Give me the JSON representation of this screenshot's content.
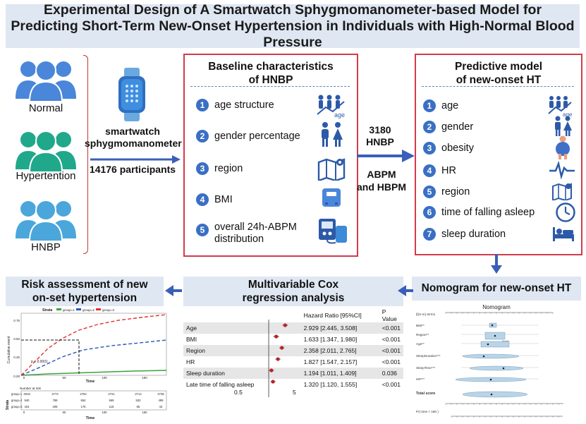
{
  "title": {
    "line1": "Experimental Design of A Smartwatch Sphygmomanometer-based Model for",
    "line2": "Predicting Short-Term New-Onset Hypertension in Individuals with High-Normal Blood Pressure"
  },
  "groups": [
    {
      "label": "Normal",
      "color": "#4a86d9"
    },
    {
      "label": "Hypertention",
      "color": "#20a88a"
    },
    {
      "label": "HNBP",
      "color": "#4aa6db"
    }
  ],
  "device": {
    "label_line1": "smartwatch",
    "label_line2": "sphygmomanometer",
    "participants": "14176 participants"
  },
  "baseline": {
    "title_line1": "Baseline characteristics",
    "title_line2": "of HNBP",
    "items": [
      {
        "n": "1",
        "label": "age structure",
        "icon": "age-people-icon"
      },
      {
        "n": "2",
        "label": "gender percentage",
        "icon": "gender-icon"
      },
      {
        "n": "3",
        "label": "region",
        "icon": "map-icon"
      },
      {
        "n": "4",
        "label": "BMI",
        "icon": "scale-icon"
      },
      {
        "n": "5",
        "label": "overall 24h-ABPM",
        "label2": "distribution",
        "icon": "bp-monitor-icon"
      }
    ]
  },
  "middle": {
    "count": "3180",
    "count_label": "HNBP",
    "method1": "ABPM",
    "method2": "and HBPM"
  },
  "predictive": {
    "title_line1": "Predictive model",
    "title_line2": "of new-onset HT",
    "items": [
      {
        "n": "1",
        "label": "age",
        "icon": "age-people-icon"
      },
      {
        "n": "2",
        "label": "gender",
        "icon": "gender-icon"
      },
      {
        "n": "3",
        "label": "obesity",
        "icon": "obesity-icon"
      },
      {
        "n": "4",
        "label": "HR",
        "icon": "heart-rate-icon"
      },
      {
        "n": "5",
        "label": "region",
        "icon": "map-icon"
      },
      {
        "n": "6",
        "label": "time of falling asleep",
        "icon": "clock-icon"
      },
      {
        "n": "7",
        "label": "sleep duration",
        "icon": "bed-icon"
      }
    ]
  },
  "risk": {
    "title_line1": "Risk assessment of new",
    "title_line2": "on-set hypertension",
    "strata_label": "Strata",
    "legend": [
      "group=1",
      "group=2",
      "group=3"
    ],
    "colors": [
      "#3aa33a",
      "#2b55b8",
      "#e03030"
    ],
    "ylabel": "Cumulative event",
    "xlabel": "Time",
    "pvalue": "p < 0.0001",
    "yticks": [
      "0.00",
      "0.25",
      "0.50",
      "0.75"
    ],
    "xticks": [
      "0",
      "50",
      "100",
      "150"
    ],
    "risk_title": "Number at risk",
    "risk_rows": [
      {
        "name": "group=1",
        "values": [
          "2918",
          "2772",
          "2752",
          "2721",
          "2714",
          "2735"
        ]
      },
      {
        "name": "group=2",
        "values": [
          "940",
          "789",
          "654",
          "569",
          "532",
          "499"
        ]
      },
      {
        "name": "group=3",
        "values": [
          "424",
          "208",
          "175",
          "118",
          "65",
          "43"
        ]
      }
    ],
    "risk_xticks": [
      "0",
      "50",
      "100",
      "150"
    ],
    "risk_xlabel": "Time"
  },
  "cox": {
    "title_line1": "Multivariable Cox",
    "title_line2": "regression analysis",
    "header_hr": "Hazard  Ratio  [95%CI]",
    "header_p": "P Value",
    "rows": [
      {
        "var": "Age",
        "hr": "2.929 [2.445, 3.508]",
        "p": "<0.001",
        "est": 2.929,
        "lo": 2.445,
        "hi": 3.508
      },
      {
        "var": "BMI",
        "hr": "1.633 [1.347, 1.980]",
        "p": "<0.001",
        "est": 1.633,
        "lo": 1.347,
        "hi": 1.98
      },
      {
        "var": "Region",
        "hr": "2.358 [2.011, 2.765]",
        "p": "<0.001",
        "est": 2.358,
        "lo": 2.011,
        "hi": 2.765
      },
      {
        "var": "HR",
        "hr": "1.827 [1.547, 2.157]",
        "p": "<0.001",
        "est": 1.827,
        "lo": 1.547,
        "hi": 2.157
      },
      {
        "var": "Sleep duration",
        "hr": "1.194 [1.011, 1.409]",
        "p": "0.036",
        "est": 1.194,
        "lo": 1.011,
        "hi": 1.409
      },
      {
        "var": "Late time of falling asleep",
        "hr": "1.320 [1.120, 1.555]",
        "p": "<0.001",
        "est": 1.32,
        "lo": 1.12,
        "hi": 1.555
      }
    ],
    "axis_ticks": [
      "0.5",
      "5"
    ]
  },
  "nomogram": {
    "title": "Nomogram for new-onset HT",
    "chart_title": "Nomogram",
    "rows": [
      "β(X-m) terms",
      "BMI**",
      "Region**",
      "Age**",
      "SleepDuration***",
      "SleepTime***",
      "HR***",
      "Total score",
      "Pr( time < 180 )"
    ],
    "region_labels": [
      "South",
      "North"
    ]
  }
}
